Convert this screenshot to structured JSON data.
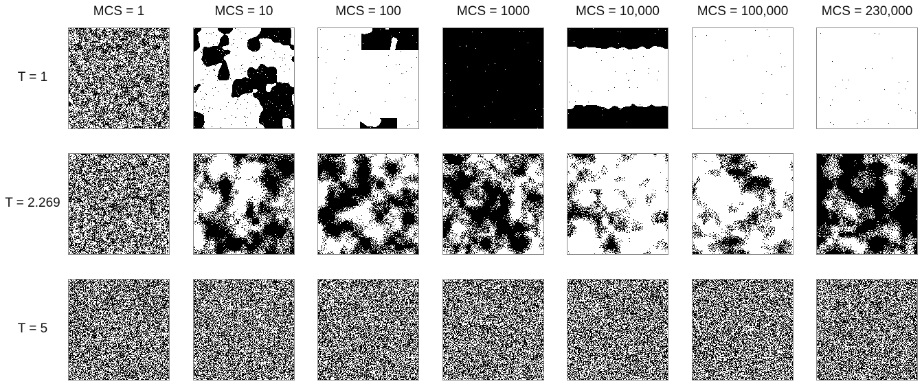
{
  "columns": [
    "MCS = 1",
    "MCS = 10",
    "MCS = 100",
    "MCS = 1000",
    "MCS = 10,000",
    "MCS = 100,000",
    "MCS = 230,000"
  ],
  "rows": [
    {
      "label": "T = 1",
      "panels": [
        "noise",
        "large-domains",
        "stripe-dominant-white",
        "all-black",
        "white-band",
        "all-white",
        "all-white"
      ]
    },
    {
      "label": "T = 2.269",
      "panels": [
        "noise",
        "critical-clusters",
        "critical-clusters",
        "critical-clusters",
        "critical-clusters-white",
        "critical-clusters-white",
        "critical-clusters-black"
      ]
    },
    {
      "label": "T = 5",
      "panels": [
        "fine-noise",
        "fine-noise",
        "fine-noise",
        "fine-noise",
        "fine-noise",
        "fine-noise",
        "fine-noise"
      ]
    }
  ],
  "colors": {
    "spin_up": "#ffffff",
    "spin_down": "#000000",
    "frame": "#8a8a8a"
  }
}
